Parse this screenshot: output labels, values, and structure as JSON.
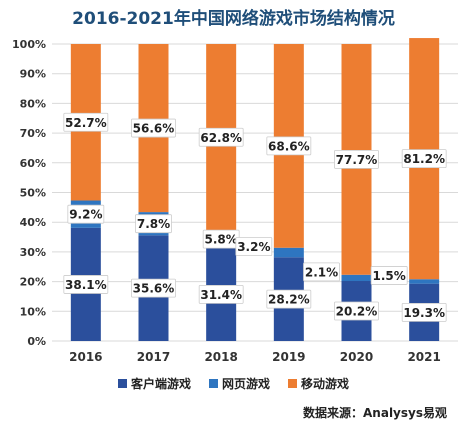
{
  "chart_data": {
    "type": "bar",
    "stacked": true,
    "title": "2016-2021年中国网络游戏市场结构情况",
    "categories": [
      "2016",
      "2017",
      "2018",
      "2019",
      "2020",
      "2021"
    ],
    "series": [
      {
        "name": "客户端游戏",
        "color": "#2b4f9c",
        "values": [
          38.1,
          35.6,
          31.4,
          28.2,
          20.2,
          19.3
        ],
        "labels": [
          "38.1%",
          "35.6%",
          "31.4%",
          "28.2%",
          "20.2%",
          "19.3%"
        ]
      },
      {
        "name": "网页游戏",
        "color": "#2e75c0",
        "values": [
          9.2,
          7.8,
          5.8,
          3.2,
          2.1,
          1.5
        ],
        "labels": [
          "9.2%",
          "7.8%",
          "5.8%",
          "3.2%",
          "2.1%",
          "1.5%"
        ]
      },
      {
        "name": "移动游戏",
        "color": "#ed7d31",
        "values": [
          52.7,
          56.6,
          62.8,
          68.6,
          77.7,
          81.2
        ],
        "labels": [
          "52.7%",
          "56.6%",
          "62.8%",
          "68.6%",
          "77.7%",
          "81.2%"
        ]
      }
    ],
    "ylim": [
      0,
      100
    ],
    "yticks": [
      "0%",
      "10%",
      "20%",
      "30%",
      "40%",
      "50%",
      "60%",
      "70%",
      "80%",
      "90%",
      "100%"
    ],
    "grid": true,
    "legend_position": "bottom"
  },
  "source": "数据来源：Analysys易观"
}
